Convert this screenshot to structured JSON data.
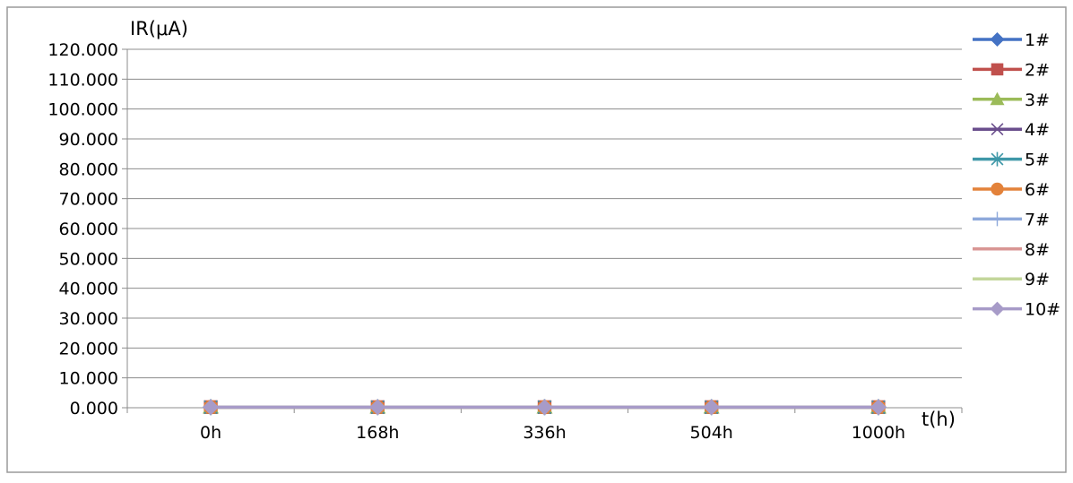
{
  "chart_data": {
    "type": "line",
    "ylabel": "IR(μA)",
    "xlabel": "t(h)",
    "categories": [
      "0h",
      "168h",
      "336h",
      "504h",
      "1000h"
    ],
    "ylim": [
      0,
      120
    ],
    "yticks": [
      "0.000",
      "10.000",
      "20.000",
      "30.000",
      "40.000",
      "50.000",
      "60.000",
      "70.000",
      "80.000",
      "90.000",
      "100.000",
      "110.000",
      "120.000"
    ],
    "grid": "horizontal",
    "legend_position": "right",
    "series": [
      {
        "name": "1#",
        "values": [
          0.2,
          0.2,
          0.2,
          0.2,
          0.2
        ],
        "color": "#4472C4",
        "marker": "diamond"
      },
      {
        "name": "2#",
        "values": [
          0.2,
          0.2,
          0.2,
          0.2,
          0.2
        ],
        "color": "#C0504D",
        "marker": "square"
      },
      {
        "name": "3#",
        "values": [
          0.2,
          0.2,
          0.2,
          0.2,
          0.2
        ],
        "color": "#9BBB59",
        "marker": "triangle"
      },
      {
        "name": "4#",
        "values": [
          0.2,
          0.2,
          0.2,
          0.2,
          0.2
        ],
        "color": "#6A4E8C",
        "marker": "x"
      },
      {
        "name": "5#",
        "values": [
          0.2,
          0.2,
          0.2,
          0.2,
          0.2
        ],
        "color": "#3F98A8",
        "marker": "star"
      },
      {
        "name": "6#",
        "values": [
          0.2,
          0.2,
          0.2,
          0.2,
          0.2
        ],
        "color": "#E3823A",
        "marker": "circle"
      },
      {
        "name": "7#",
        "values": [
          0.2,
          0.2,
          0.2,
          0.2,
          0.2
        ],
        "color": "#8EA9DB",
        "marker": "plus"
      },
      {
        "name": "8#",
        "values": [
          0.2,
          0.2,
          0.2,
          0.2,
          0.2
        ],
        "color": "#D99694",
        "marker": "none"
      },
      {
        "name": "9#",
        "values": [
          0.2,
          0.2,
          0.2,
          0.2,
          0.2
        ],
        "color": "#C3D69B",
        "marker": "none"
      },
      {
        "name": "10#",
        "values": [
          0.2,
          0.2,
          0.2,
          0.2,
          0.2
        ],
        "color": "#A79BC8",
        "marker": "diamond"
      }
    ]
  }
}
